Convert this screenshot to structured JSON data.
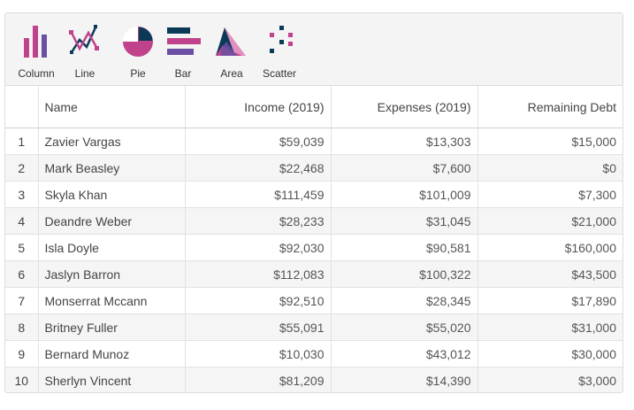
{
  "toolbar": {
    "items": [
      {
        "label": "Column",
        "icon": "column-chart-icon"
      },
      {
        "label": "Line",
        "icon": "line-chart-icon"
      },
      {
        "label": "Pie",
        "icon": "pie-chart-icon"
      },
      {
        "label": "Bar",
        "icon": "bar-chart-icon"
      },
      {
        "label": "Area",
        "icon": "area-chart-icon"
      },
      {
        "label": "Scatter",
        "icon": "scatter-chart-icon"
      }
    ]
  },
  "colors": {
    "navy": "#0b3a57",
    "magenta": "#c0428a",
    "purple": "#6a4fa3",
    "pink": "#e08fbf"
  },
  "table": {
    "headers": [
      "",
      "Name",
      "Income (2019)",
      "Expenses (2019)",
      "Remaining Debt"
    ],
    "rows": [
      {
        "index": "1",
        "name": "Zavier Vargas",
        "income": "$59,039",
        "expenses": "$13,303",
        "debt": "$15,000"
      },
      {
        "index": "2",
        "name": "Mark Beasley",
        "income": "$22,468",
        "expenses": "$7,600",
        "debt": "$0"
      },
      {
        "index": "3",
        "name": "Skyla Khan",
        "income": "$111,459",
        "expenses": "$101,009",
        "debt": "$7,300"
      },
      {
        "index": "4",
        "name": "Deandre Weber",
        "income": "$28,233",
        "expenses": "$31,045",
        "debt": "$21,000"
      },
      {
        "index": "5",
        "name": "Isla Doyle",
        "income": "$92,030",
        "expenses": "$90,581",
        "debt": "$160,000"
      },
      {
        "index": "6",
        "name": "Jaslyn Barron",
        "income": "$112,083",
        "expenses": "$100,322",
        "debt": "$43,500"
      },
      {
        "index": "7",
        "name": "Monserrat Mccann",
        "income": "$92,510",
        "expenses": "$28,345",
        "debt": "$17,890"
      },
      {
        "index": "8",
        "name": "Britney Fuller",
        "income": "$55,091",
        "expenses": "$55,020",
        "debt": "$31,000"
      },
      {
        "index": "9",
        "name": "Bernard Munoz",
        "income": "$10,030",
        "expenses": "$43,012",
        "debt": "$30,000"
      },
      {
        "index": "10",
        "name": "Sherlyn Vincent",
        "income": "$81,209",
        "expenses": "$14,390",
        "debt": "$3,000"
      }
    ]
  }
}
